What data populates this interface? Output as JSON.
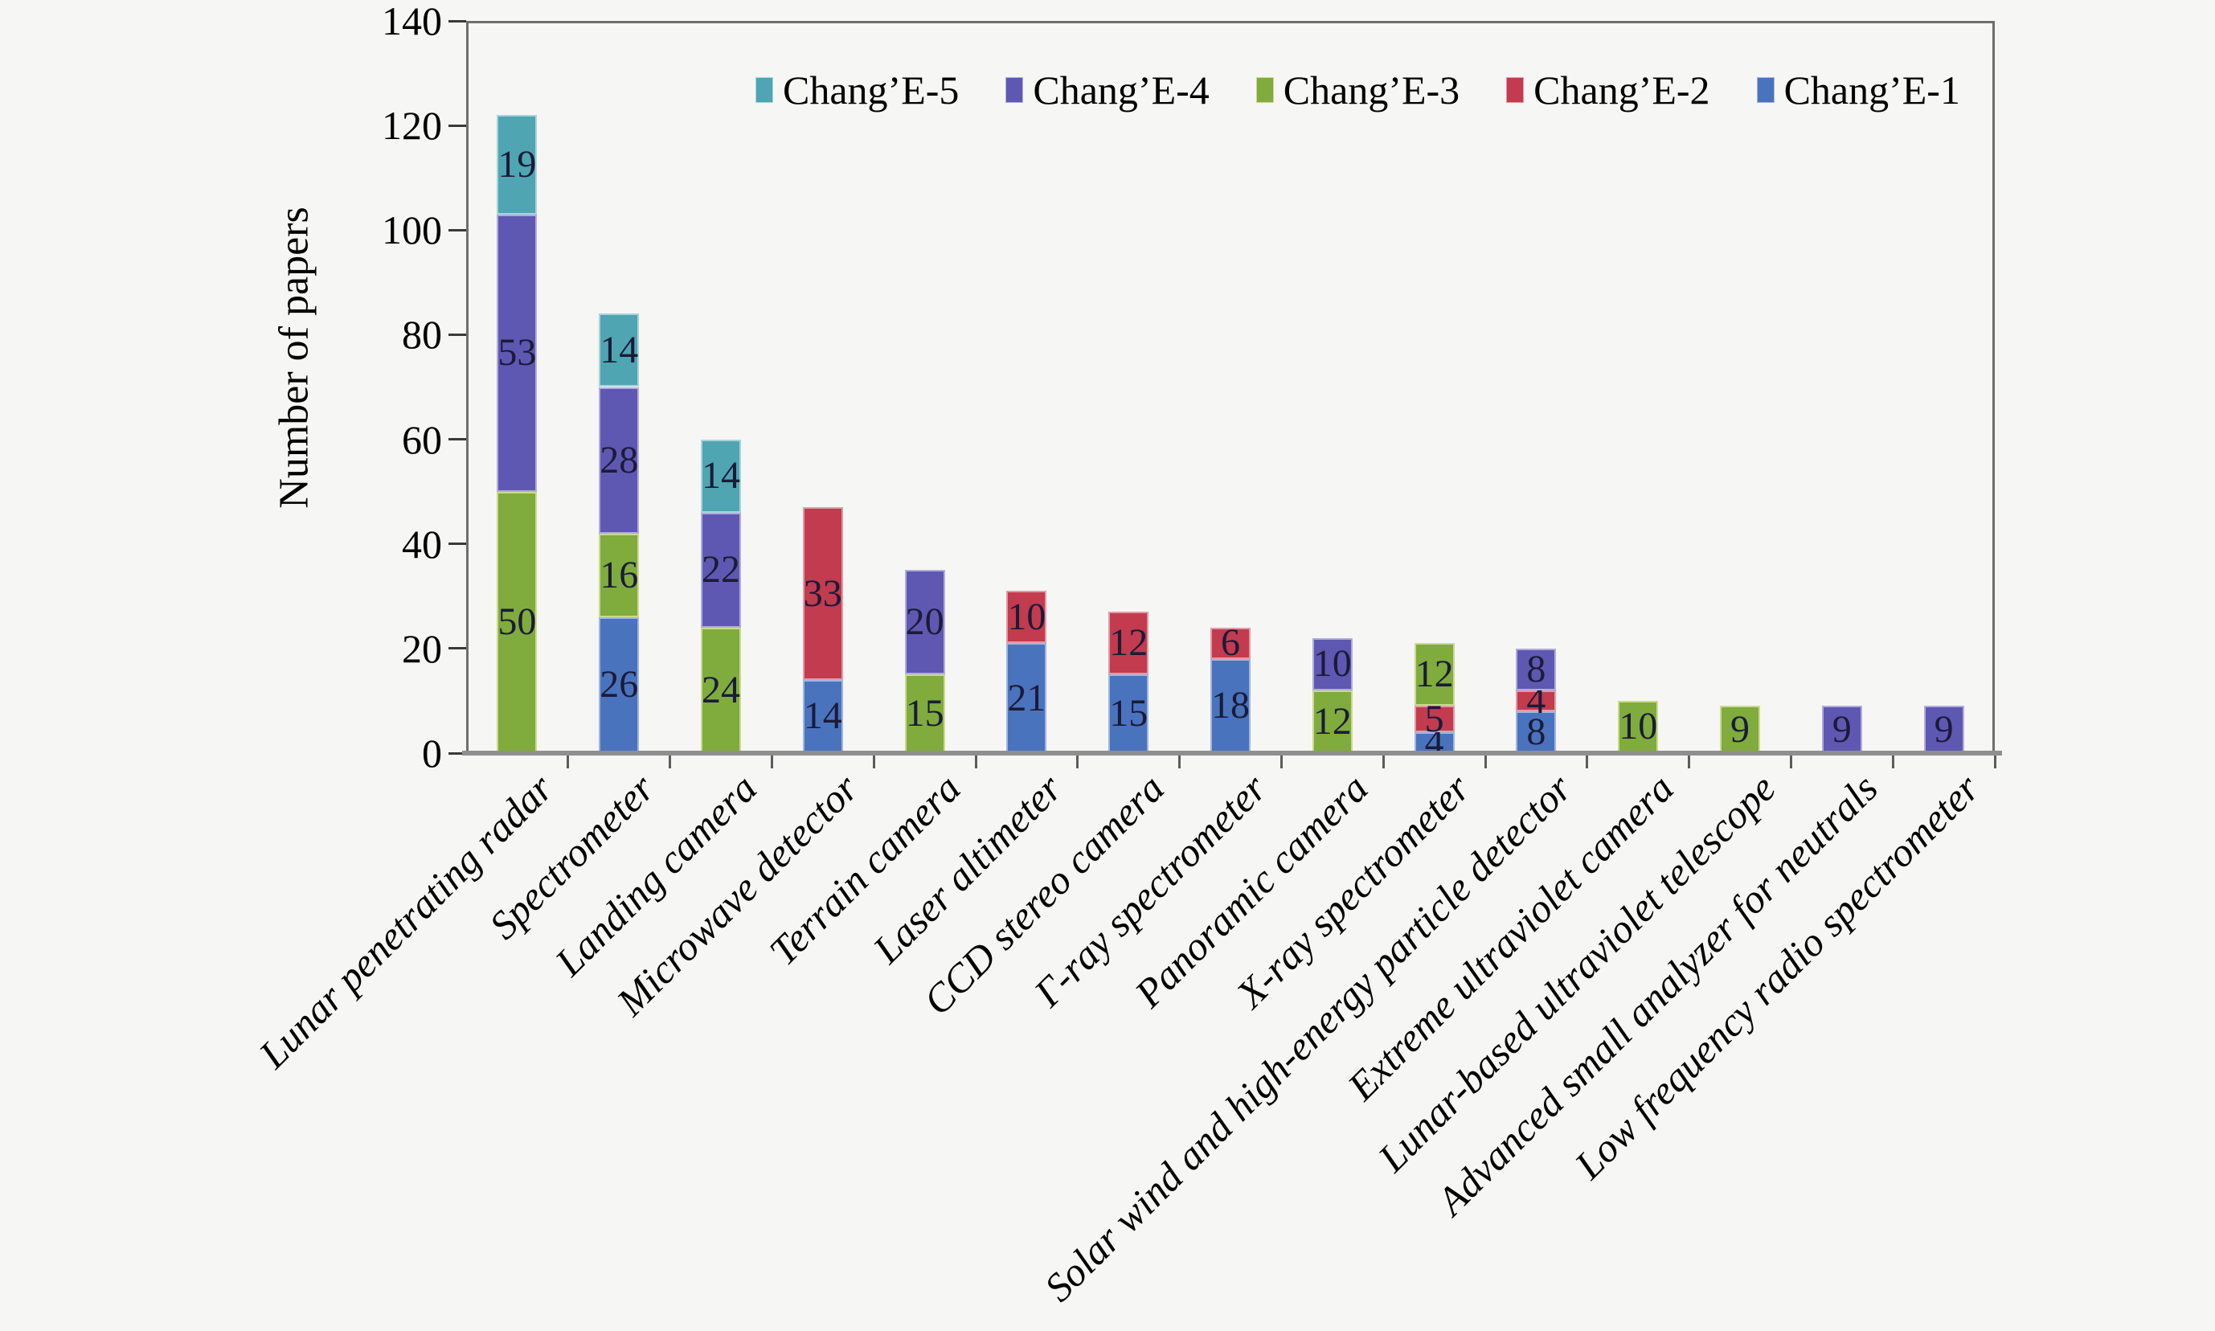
{
  "colors": {
    "background": "#f6f6f5",
    "axis_line": "#8f8f8f",
    "plot_border": "#6e6e6e",
    "value_label_text": "#1b1b38"
  },
  "chart_data": {
    "type": "bar",
    "stacked": true,
    "title": "",
    "xlabel": "",
    "ylabel": "Number of papers",
    "ylim": [
      0,
      140
    ],
    "yticks": [
      0,
      20,
      40,
      60,
      80,
      100,
      120,
      140
    ],
    "grid": false,
    "legend_position": "top",
    "legend_order": [
      "Chang’E-5",
      "Chang’E-4",
      "Chang’E-3",
      "Chang’E-2",
      "Chang’E-1"
    ],
    "categories": [
      "Lunar penetrating radar",
      "Spectrometer",
      "Landing camera",
      "Microwave detector",
      "Terrain camera",
      "Laser altimeter",
      "CCD stereo camera",
      "Γ-ray spectrometer",
      "Panoramic camera",
      "X-ray spectrometer",
      "Solar wind and high-energy particle detector",
      "Extreme ultraviolet camera",
      "Lunar-based ultraviolet telescope",
      "Advanced small analyzer for neutrals",
      "Low frequency radio spectrometer"
    ],
    "series": [
      {
        "name": "Chang’E-1",
        "color": "#4A73BE",
        "edge_color": "#9FB6E2",
        "values": [
          0,
          26,
          0,
          14,
          0,
          21,
          15,
          18,
          0,
          4,
          8,
          0,
          0,
          0,
          0
        ]
      },
      {
        "name": "Chang’E-2",
        "color": "#C23B4E",
        "edge_color": "#E39AA6",
        "values": [
          0,
          0,
          0,
          33,
          0,
          10,
          12,
          6,
          0,
          5,
          4,
          0,
          0,
          0,
          0
        ]
      },
      {
        "name": "Chang’E-3",
        "color": "#7FAC3D",
        "edge_color": "#CBDA8E",
        "values": [
          50,
          16,
          24,
          0,
          15,
          0,
          0,
          0,
          12,
          12,
          0,
          10,
          9,
          0,
          0
        ]
      },
      {
        "name": "Chang’E-4",
        "color": "#5F58B2",
        "edge_color": "#B0ACDD",
        "values": [
          53,
          28,
          22,
          0,
          20,
          0,
          0,
          0,
          10,
          0,
          8,
          0,
          0,
          9,
          9
        ]
      },
      {
        "name": "Chang’E-5",
        "color": "#4FA5B2",
        "edge_color": "#A8D4DB",
        "values": [
          19,
          14,
          14,
          0,
          0,
          0,
          0,
          0,
          0,
          0,
          0,
          0,
          0,
          0,
          0
        ]
      }
    ]
  }
}
